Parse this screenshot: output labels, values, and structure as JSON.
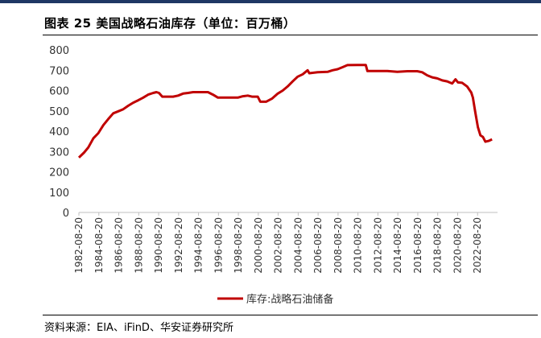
{
  "header": {
    "title": "图表 25 美国战略石油库存（单位：百万桶）"
  },
  "footer": {
    "source": "资料来源：EIA、iFinD、华安证券研究所"
  },
  "colors": {
    "series": "#c00000",
    "top_rule": "#1f3864"
  },
  "chart_data": {
    "type": "line",
    "title": "",
    "xlabel": "",
    "ylabel": "",
    "ylim": [
      0,
      800
    ],
    "yticks": [
      0,
      100,
      200,
      300,
      400,
      500,
      600,
      700,
      800
    ],
    "xlim": [
      "1982-08-20",
      "2024-08-20"
    ],
    "xticks": [
      "1982-08-20",
      "1984-08-20",
      "1986-08-20",
      "1988-08-20",
      "1990-08-20",
      "1992-08-20",
      "1994-08-20",
      "1996-08-20",
      "1998-08-20",
      "2000-08-20",
      "2002-08-20",
      "2004-08-20",
      "2006-08-20",
      "2008-08-20",
      "2010-08-20",
      "2012-08-20",
      "2014-08-20",
      "2016-08-20",
      "2018-08-20",
      "2020-08-20",
      "2022-08-20"
    ],
    "legend_position": "bottom",
    "grid": false,
    "series": [
      {
        "name": "库存:战略石油储备",
        "points": [
          [
            "1982-08-20",
            270
          ],
          [
            "1983-03-01",
            295
          ],
          [
            "1983-08-01",
            320
          ],
          [
            "1984-02-01",
            365
          ],
          [
            "1984-08-01",
            390
          ],
          [
            "1985-02-01",
            430
          ],
          [
            "1985-08-01",
            460
          ],
          [
            "1986-02-01",
            488
          ],
          [
            "1986-08-01",
            498
          ],
          [
            "1987-02-01",
            508
          ],
          [
            "1987-08-01",
            525
          ],
          [
            "1988-02-01",
            540
          ],
          [
            "1988-08-01",
            552
          ],
          [
            "1989-02-01",
            565
          ],
          [
            "1989-08-01",
            580
          ],
          [
            "1990-02-01",
            588
          ],
          [
            "1990-06-01",
            592
          ],
          [
            "1990-09-01",
            588
          ],
          [
            "1991-01-01",
            570
          ],
          [
            "1991-06-01",
            570
          ],
          [
            "1992-02-01",
            570
          ],
          [
            "1992-08-01",
            575
          ],
          [
            "1993-02-01",
            585
          ],
          [
            "1993-08-01",
            588
          ],
          [
            "1994-02-01",
            592
          ],
          [
            "1994-08-01",
            592
          ],
          [
            "1995-08-01",
            592
          ],
          [
            "1996-02-01",
            580
          ],
          [
            "1996-08-01",
            565
          ],
          [
            "1997-08-01",
            565
          ],
          [
            "1998-08-01",
            565
          ],
          [
            "1999-02-01",
            572
          ],
          [
            "1999-08-01",
            575
          ],
          [
            "2000-01-01",
            570
          ],
          [
            "2000-08-01",
            570
          ],
          [
            "2000-11-01",
            545
          ],
          [
            "2001-06-01",
            545
          ],
          [
            "2002-01-01",
            560
          ],
          [
            "2002-08-01",
            585
          ],
          [
            "2003-02-01",
            600
          ],
          [
            "2003-08-01",
            620
          ],
          [
            "2004-02-01",
            645
          ],
          [
            "2004-08-01",
            668
          ],
          [
            "2005-02-01",
            680
          ],
          [
            "2005-08-01",
            700
          ],
          [
            "2005-10-01",
            685
          ],
          [
            "2006-08-01",
            690
          ],
          [
            "2007-08-01",
            692
          ],
          [
            "2008-02-01",
            700
          ],
          [
            "2008-08-01",
            705
          ],
          [
            "2009-02-01",
            715
          ],
          [
            "2009-08-01",
            725
          ],
          [
            "2010-08-01",
            726
          ],
          [
            "2011-06-01",
            726
          ],
          [
            "2011-08-01",
            696
          ],
          [
            "2012-08-01",
            696
          ],
          [
            "2013-08-01",
            696
          ],
          [
            "2014-08-01",
            692
          ],
          [
            "2015-08-01",
            695
          ],
          [
            "2016-08-01",
            695
          ],
          [
            "2017-02-01",
            690
          ],
          [
            "2017-08-01",
            675
          ],
          [
            "2018-02-01",
            665
          ],
          [
            "2018-08-01",
            660
          ],
          [
            "2019-02-01",
            650
          ],
          [
            "2019-08-01",
            645
          ],
          [
            "2020-02-01",
            635
          ],
          [
            "2020-06-01",
            655
          ],
          [
            "2020-09-01",
            640
          ],
          [
            "2021-02-01",
            638
          ],
          [
            "2021-08-01",
            620
          ],
          [
            "2022-01-01",
            590
          ],
          [
            "2022-03-01",
            565
          ],
          [
            "2022-06-01",
            490
          ],
          [
            "2022-09-01",
            420
          ],
          [
            "2022-12-01",
            380
          ],
          [
            "2023-03-01",
            372
          ],
          [
            "2023-06-01",
            348
          ],
          [
            "2023-10-01",
            352
          ],
          [
            "2024-02-01",
            360
          ]
        ]
      }
    ]
  }
}
